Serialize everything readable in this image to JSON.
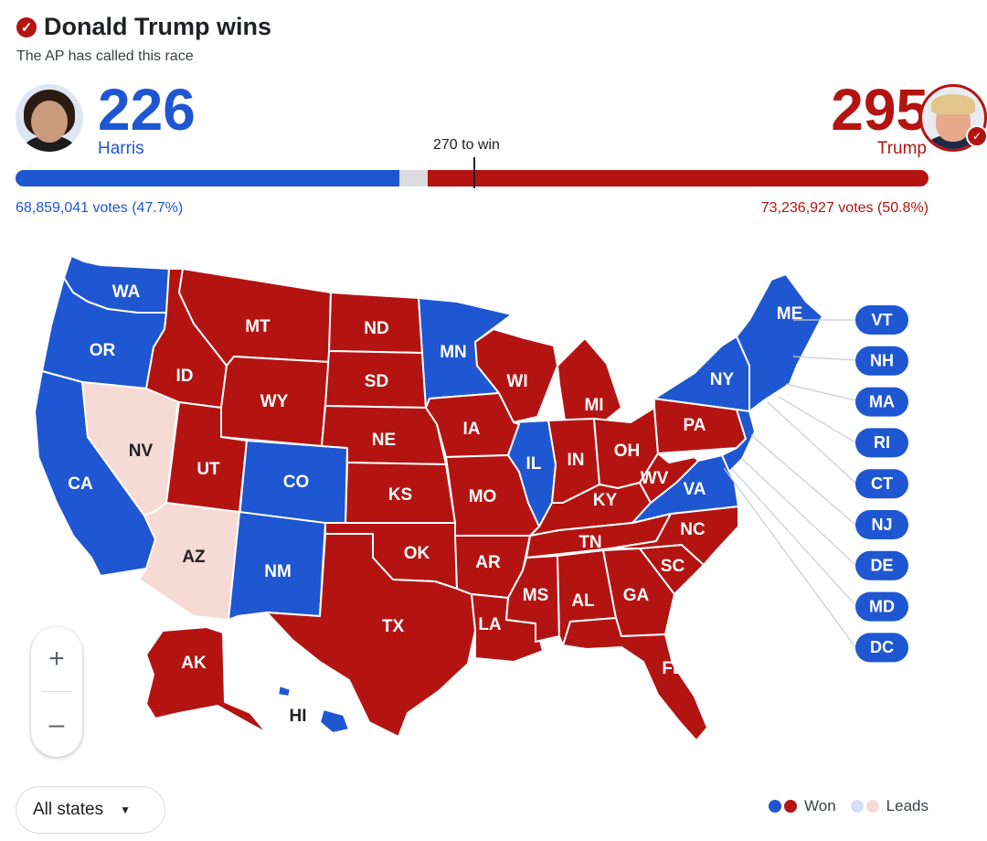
{
  "header": {
    "headline": "Donald Trump wins",
    "subline": "The AP has called this race"
  },
  "candidates": {
    "left": {
      "name": "Harris",
      "electoral_votes": "226",
      "popular": "68,859,041 votes (47.7%)",
      "color": "#1f56d1"
    },
    "right": {
      "name": "Trump",
      "electoral_votes": "295",
      "popular": "73,236,927 votes (50.8%)",
      "color": "#b31412"
    }
  },
  "threshold_label": "270 to win",
  "bar": {
    "total": 538,
    "left_share": 226,
    "right_share": 295,
    "threshold": 270
  },
  "colors": {
    "dem_won": "#1f56d1",
    "rep_won": "#b31412",
    "dem_leads": "#d6def5",
    "rep_leads": "#f6dad5"
  },
  "states": [
    {
      "abbr": "WA",
      "status": "dem_won"
    },
    {
      "abbr": "OR",
      "status": "dem_won"
    },
    {
      "abbr": "CA",
      "status": "dem_won"
    },
    {
      "abbr": "NV",
      "status": "rep_leads"
    },
    {
      "abbr": "AZ",
      "status": "rep_leads"
    },
    {
      "abbr": "ID",
      "status": "rep_won"
    },
    {
      "abbr": "MT",
      "status": "rep_won"
    },
    {
      "abbr": "WY",
      "status": "rep_won"
    },
    {
      "abbr": "UT",
      "status": "rep_won"
    },
    {
      "abbr": "CO",
      "status": "dem_won"
    },
    {
      "abbr": "NM",
      "status": "dem_won"
    },
    {
      "abbr": "ND",
      "status": "rep_won"
    },
    {
      "abbr": "SD",
      "status": "rep_won"
    },
    {
      "abbr": "NE",
      "status": "rep_won"
    },
    {
      "abbr": "KS",
      "status": "rep_won"
    },
    {
      "abbr": "OK",
      "status": "rep_won"
    },
    {
      "abbr": "TX",
      "status": "rep_won"
    },
    {
      "abbr": "MN",
      "status": "dem_won"
    },
    {
      "abbr": "IA",
      "status": "rep_won"
    },
    {
      "abbr": "MO",
      "status": "rep_won"
    },
    {
      "abbr": "AR",
      "status": "rep_won"
    },
    {
      "abbr": "LA",
      "status": "rep_won"
    },
    {
      "abbr": "WI",
      "status": "rep_won"
    },
    {
      "abbr": "IL",
      "status": "dem_won"
    },
    {
      "abbr": "MI",
      "status": "rep_won"
    },
    {
      "abbr": "IN",
      "status": "rep_won"
    },
    {
      "abbr": "OH",
      "status": "rep_won"
    },
    {
      "abbr": "KY",
      "status": "rep_won"
    },
    {
      "abbr": "TN",
      "status": "rep_won"
    },
    {
      "abbr": "MS",
      "status": "rep_won"
    },
    {
      "abbr": "AL",
      "status": "rep_won"
    },
    {
      "abbr": "GA",
      "status": "rep_won"
    },
    {
      "abbr": "FL",
      "status": "rep_won"
    },
    {
      "abbr": "SC",
      "status": "rep_won"
    },
    {
      "abbr": "NC",
      "status": "rep_won"
    },
    {
      "abbr": "VA",
      "status": "dem_won"
    },
    {
      "abbr": "WV",
      "status": "rep_won"
    },
    {
      "abbr": "PA",
      "status": "rep_won"
    },
    {
      "abbr": "NY",
      "status": "dem_won"
    },
    {
      "abbr": "ME",
      "status": "dem_won"
    },
    {
      "abbr": "AK",
      "status": "rep_won"
    },
    {
      "abbr": "HI",
      "status": "dem_won"
    }
  ],
  "small_states": [
    "VT",
    "NH",
    "MA",
    "RI",
    "CT",
    "NJ",
    "DE",
    "MD",
    "DC"
  ],
  "zoom": {
    "in_icon": "plus-icon",
    "out_icon": "minus-icon",
    "in": "+",
    "out": "–"
  },
  "filter": {
    "selected": "All states",
    "icon": "caret-down-icon",
    "caret": "▼"
  },
  "legend": {
    "won": "Won",
    "leads": "Leads"
  }
}
